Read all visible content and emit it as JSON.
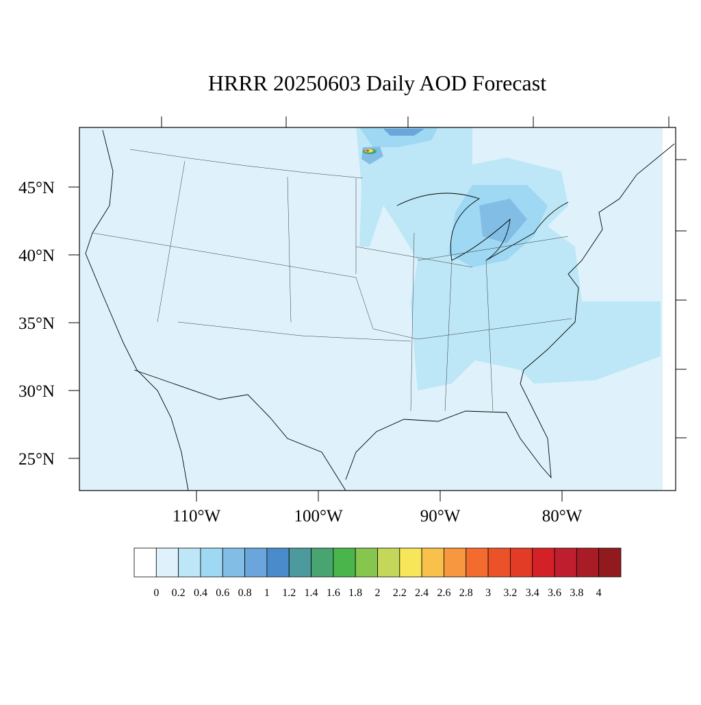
{
  "title": "HRRR 20250603 Daily AOD Forecast",
  "lat_ticks": [
    {
      "value": 45,
      "label": "45°N"
    },
    {
      "value": 40,
      "label": "40°N"
    },
    {
      "value": 35,
      "label": "35°N"
    },
    {
      "value": 30,
      "label": "30°N"
    },
    {
      "value": 25,
      "label": "25°N"
    }
  ],
  "lon_ticks": [
    {
      "value": -110,
      "label": "110°W"
    },
    {
      "value": -100,
      "label": "100°W"
    },
    {
      "value": -90,
      "label": "90°W"
    },
    {
      "value": -80,
      "label": "80°W"
    }
  ],
  "colorbar": {
    "levels": [
      0,
      0.2,
      0.4,
      0.6,
      0.8,
      1,
      1.2,
      1.4,
      1.6,
      1.8,
      2,
      2.2,
      2.4,
      2.6,
      2.8,
      3,
      3.2,
      3.4,
      3.6,
      3.8,
      4
    ],
    "colors": [
      "#ffffff",
      "#dff2fb",
      "#bde7f7",
      "#9fd8f3",
      "#82bde6",
      "#6aa6db",
      "#4a8bcb",
      "#4c9a9e",
      "#48a571",
      "#4ab54a",
      "#86c54e",
      "#c5d75a",
      "#f7e65a",
      "#f8c14c",
      "#f7973f",
      "#f46b2f",
      "#ec5229",
      "#e23c27",
      "#d42128",
      "#be1e2d",
      "#a81c25",
      "#901a1e"
    ]
  }
}
